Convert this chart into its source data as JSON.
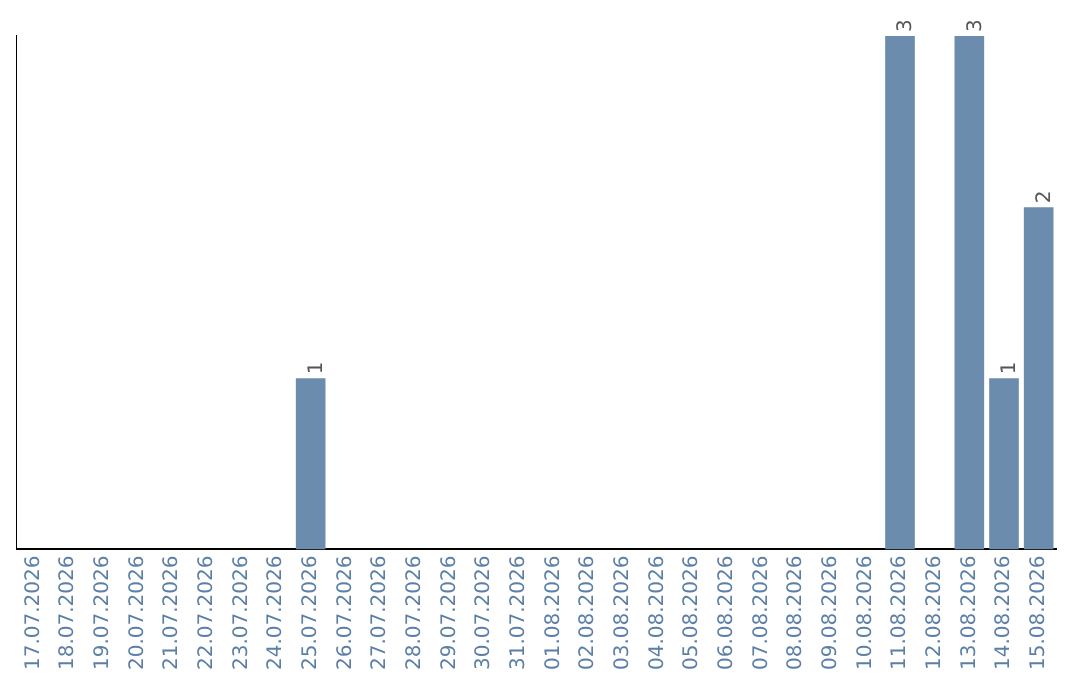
{
  "chart_data": {
    "type": "bar",
    "categories": [
      "17.07.2026",
      "18.07.2026",
      "19.07.2026",
      "20.07.2026",
      "21.07.2026",
      "22.07.2026",
      "23.07.2026",
      "24.07.2026",
      "25.07.2026",
      "26.07.2026",
      "27.07.2026",
      "28.07.2026",
      "29.07.2026",
      "30.07.2026",
      "31.07.2026",
      "01.08.2026",
      "02.08.2026",
      "03.08.2026",
      "04.08.2026",
      "05.08.2026",
      "06.08.2026",
      "07.08.2026",
      "08.08.2026",
      "09.08.2026",
      "10.08.2026",
      "11.08.2026",
      "12.08.2026",
      "13.08.2026",
      "14.08.2026",
      "15.08.2026"
    ],
    "values": [
      0,
      0,
      0,
      0,
      0,
      0,
      0,
      0,
      1,
      0,
      0,
      0,
      0,
      0,
      0,
      0,
      0,
      0,
      0,
      0,
      0,
      0,
      0,
      0,
      0,
      3,
      0,
      3,
      1,
      2
    ],
    "value_labels": [
      null,
      null,
      null,
      null,
      null,
      null,
      null,
      null,
      "1",
      null,
      null,
      null,
      null,
      null,
      null,
      null,
      null,
      null,
      null,
      null,
      null,
      null,
      null,
      null,
      null,
      "3",
      null,
      "3",
      "1",
      "2"
    ],
    "color": "#6b8cac",
    "grid": false,
    "legend": false,
    "tick_labels": "x"
  }
}
